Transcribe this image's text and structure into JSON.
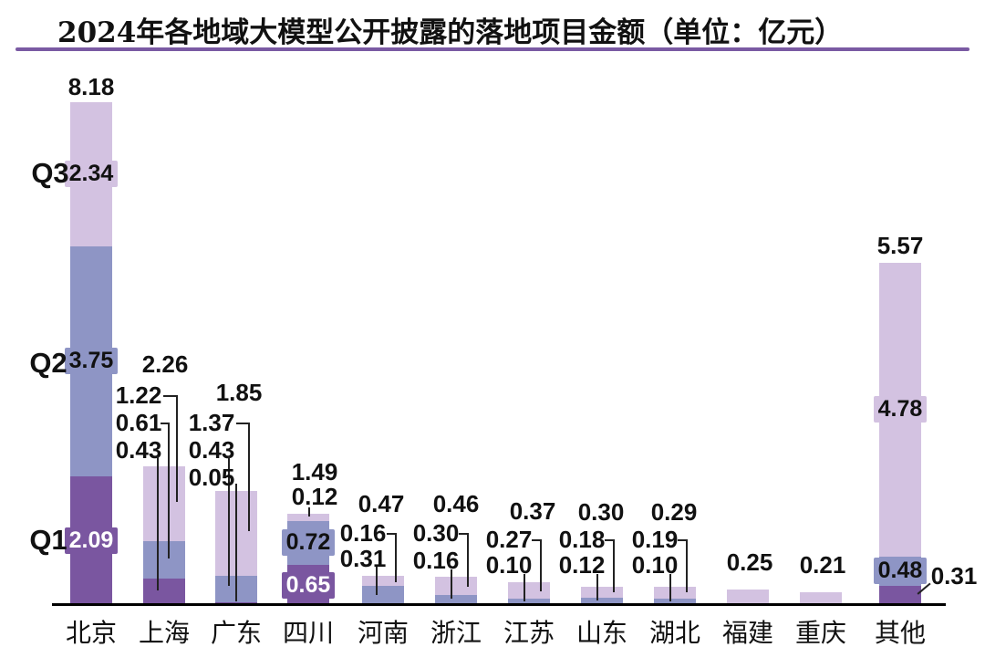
{
  "title": "2024年各地域大模型公开披露的落地项目金额（单位：亿元）",
  "quarter_labels": {
    "q1": "Q1",
    "q2": "Q2",
    "q3": "Q3"
  },
  "colors": {
    "q1": "#7a56a0",
    "q2": "#8e95c5",
    "q3": "#d3c2e1",
    "q1_box_text": "#ffffff",
    "label_text": "#111111",
    "title_rule": "#7a5aa3",
    "axis": "#000000",
    "leader_line": "#222222"
  },
  "chart_data": {
    "type": "bar",
    "stacked": true,
    "title": "2024年各地域大模型公开披露的落地项目金额（单位：亿元）",
    "unit": "亿元",
    "categories": [
      "北京",
      "上海",
      "广东",
      "四川",
      "河南",
      "浙江",
      "江苏",
      "山东",
      "湖北",
      "福建",
      "重庆",
      "其他"
    ],
    "series": [
      {
        "name": "Q1",
        "values": [
          2.09,
          0.43,
          0.05,
          0.65,
          0,
          0,
          0,
          0,
          0,
          0,
          0,
          0.31
        ]
      },
      {
        "name": "Q2",
        "values": [
          3.75,
          0.61,
          0.43,
          0.72,
          0.31,
          0.16,
          0.1,
          0.12,
          0.1,
          0,
          0,
          0.48
        ]
      },
      {
        "name": "Q3",
        "values": [
          2.34,
          1.22,
          1.37,
          0.12,
          0.16,
          0.3,
          0.27,
          0.18,
          0.19,
          0.25,
          0.21,
          4.78
        ]
      }
    ],
    "totals": [
      8.18,
      2.26,
      1.85,
      1.49,
      0.47,
      0.46,
      0.37,
      0.3,
      0.29,
      0.25,
      0.21,
      5.57
    ],
    "ylim": [
      0,
      8.18
    ],
    "grid": false,
    "legend": "quarter labels Q1/Q2/Q3 shown at left of first bar"
  }
}
